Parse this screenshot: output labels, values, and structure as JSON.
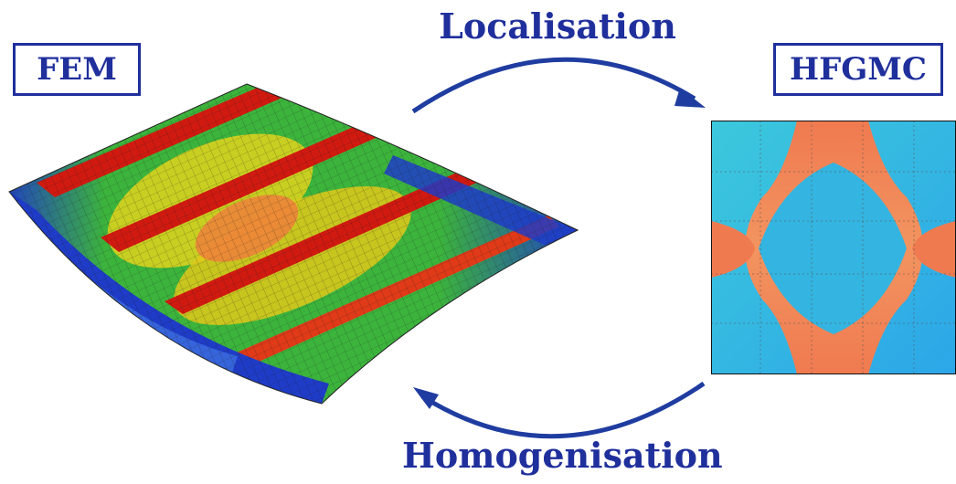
{
  "labels": {
    "fem": "FEM",
    "hfgmc": "HFGMC",
    "localisation": "Localisation",
    "homogenisation": "Homogenisation"
  },
  "colors": {
    "accent": "#1f2f9c",
    "contour_red": "#d01a10",
    "contour_orange": "#f07a3c",
    "contour_yellow": "#e0d21a",
    "contour_green": "#3cb43c",
    "contour_cyan": "#3cc8dc",
    "contour_blue": "#1f3cc8"
  }
}
